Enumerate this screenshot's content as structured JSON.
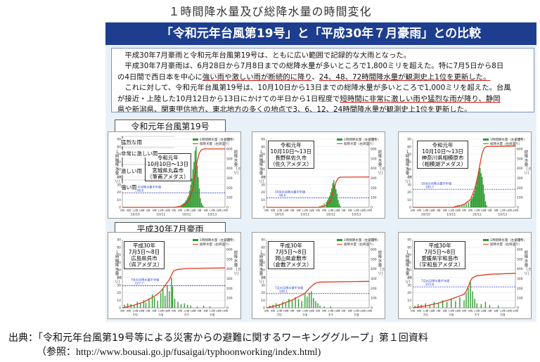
{
  "page_title": "１時間降水量及び総降水量の時間変化",
  "banner": "「令和元年台風第19号」と「平成30年７月豪雨」との比較",
  "paragraphs": {
    "p1": "平成30年7月豪雨と令和元年台風第19号は、ともに広い範囲で記録的な大雨となった。",
    "p2a": "平成30年7月豪雨は、6月28日から7月8日までの総降水量が多いところで1,800ミリを超えた。特に7月5日から8日",
    "p2b": "の4日間で西日本を中心に",
    "p2b_ul1": "強い雨や激しい雨が断続的に降り",
    "p2b_mid": "、",
    "p2b_ul2": "24、48、72時間降水量が観測史上1位を更新した。",
    "p3a": "これに対して、令和元年台風第19号は、10月10日から13日までの総降水量が多いところで1,000ミリを超えた。台風",
    "p3b": "が接近・上陸した10月12日から13日にかけての半日から1日程度で",
    "p3b_ul": "短時間に非常に激しい雨や猛烈な雨が降り、静岡",
    "p3c_ul": "県や新潟県、関東甲信地方、東北地方の多くの地点で3、6、12、24時間降水量が観測史上1位を更新した。"
  },
  "group_labels": {
    "reiwa": "令和元年台風第19号",
    "heisei": "平成30年7月豪雨"
  },
  "intensity_labels": [
    "猛烈な雨",
    "非常に激しい雨",
    "激しい雨",
    "強い雨"
  ],
  "axis_labels": {
    "left": "１時間降水量（ミリ）",
    "right": "総降水量（ミリ）",
    "legend_bar": "1時間降水量（左目盛り）",
    "legend_line": "総降水量（右目盛り）"
  },
  "colors": {
    "bar": "#2e9a2e",
    "line": "#e03a1e",
    "ref": "#2a3fcf",
    "banner": "#1d3d8f",
    "panel": "#e9f1f8"
  },
  "source": {
    "line1": "出典：「令和元年台風第19号等による災害からの避難に関するワーキンググループ」第１回資料",
    "line2": "（参照：http://www.bousai.go.jp/fusaigai/typhoonworking/index.html)"
  },
  "chart_data": [
    {
      "type": "bar",
      "title": [
        "令和元年",
        "10月10日～13日",
        "宮城県丸森市",
        "（筆甫アメダス）"
      ],
      "date_labels": [
        "10/10",
        "10/11",
        "10/12",
        "10/13"
      ],
      "x_ticks": [
        "0時",
        "6時",
        "12時",
        "18時",
        "0時",
        "6時",
        "12時",
        "18時",
        "0時",
        "6時",
        "12時",
        "18時",
        "0時",
        "6時",
        "12時",
        "18時",
        "24時"
      ],
      "hours": 96,
      "ylim_left": [
        0,
        90
      ],
      "ylim_right": [
        0,
        700
      ],
      "yticks_left": [
        0,
        10,
        20,
        30,
        40,
        50,
        60,
        70,
        80,
        90
      ],
      "yticks_right": [
        0,
        100,
        200,
        300,
        400,
        500,
        600,
        700
      ],
      "ref_label": "10月の月降水量平年値",
      "ref_value": "148.8",
      "ref_right": 148.8,
      "bars": [
        [
          49,
          1
        ],
        [
          51,
          1
        ],
        [
          53,
          2
        ],
        [
          55,
          3
        ],
        [
          56,
          4
        ],
        [
          57,
          5
        ],
        [
          58,
          6
        ],
        [
          59,
          8
        ],
        [
          60,
          10
        ],
        [
          61,
          13
        ],
        [
          62,
          16
        ],
        [
          63,
          22
        ],
        [
          64,
          30
        ],
        [
          65,
          38
        ],
        [
          66,
          50
        ],
        [
          67,
          60
        ],
        [
          68,
          75
        ],
        [
          69,
          80
        ],
        [
          70,
          55
        ],
        [
          71,
          40
        ],
        [
          72,
          25
        ],
        [
          73,
          12
        ],
        [
          74,
          6
        ],
        [
          75,
          3
        ],
        [
          76,
          1
        ]
      ],
      "total": [
        [
          0,
          0
        ],
        [
          49,
          0
        ],
        [
          55,
          12
        ],
        [
          60,
          40
        ],
        [
          63,
          90
        ],
        [
          66,
          200
        ],
        [
          68,
          330
        ],
        [
          70,
          480
        ],
        [
          72,
          560
        ],
        [
          74,
          590
        ],
        [
          76,
          600
        ],
        [
          96,
          600
        ]
      ]
    },
    {
      "type": "bar",
      "title": [
        "令和元年",
        "10月10日～13日",
        "長野県佐久市",
        "（佐久アメダス）"
      ],
      "date_labels": [
        "10/10",
        "10/11",
        "10/12",
        "10/13"
      ],
      "x_ticks": [
        "0時",
        "6時",
        "12時",
        "18時",
        "0時",
        "6時",
        "12時",
        "18時",
        "0時",
        "6時",
        "12時",
        "18時",
        "0時",
        "6時",
        "12時",
        "18時",
        "24時"
      ],
      "hours": 96,
      "ylim_left": [
        0,
        90
      ],
      "ylim_right": [
        0,
        700
      ],
      "yticks_left": [
        0,
        10,
        20,
        30,
        40,
        50,
        60,
        70,
        80,
        90
      ],
      "yticks_right": [
        0,
        100,
        200,
        300,
        400,
        500,
        600,
        700
      ],
      "ref_label": "10月の月降水量平年値",
      "ref_value": "98.0",
      "ref_right": 98.0,
      "bars": [
        [
          50,
          2
        ],
        [
          52,
          3
        ],
        [
          54,
          5
        ],
        [
          56,
          7
        ],
        [
          57,
          9
        ],
        [
          58,
          12
        ],
        [
          59,
          15
        ],
        [
          60,
          20
        ],
        [
          61,
          25
        ],
        [
          62,
          32
        ],
        [
          63,
          36
        ],
        [
          64,
          30
        ],
        [
          65,
          24
        ],
        [
          66,
          18
        ],
        [
          67,
          10
        ],
        [
          68,
          5
        ],
        [
          69,
          2
        ]
      ],
      "total": [
        [
          0,
          0
        ],
        [
          50,
          0
        ],
        [
          56,
          20
        ],
        [
          60,
          70
        ],
        [
          63,
          180
        ],
        [
          65,
          260
        ],
        [
          67,
          300
        ],
        [
          69,
          310
        ],
        [
          96,
          312
        ]
      ]
    },
    {
      "type": "bar",
      "title": [
        "令和元年",
        "10月10日～13日",
        "神奈川県相模原市",
        "（相模湖アメダス）"
      ],
      "date_labels": [
        "10/10",
        "10/11",
        "10/12",
        "10/13"
      ],
      "x_ticks": [
        "0時",
        "6時",
        "12時",
        "18時",
        "0時",
        "6時",
        "12時",
        "18時",
        "0時",
        "6時",
        "12時",
        "18時",
        "0時",
        "6時",
        "12時",
        "18時",
        "24時"
      ],
      "hours": 96,
      "ylim_left": [
        0,
        90
      ],
      "ylim_right": [
        0,
        700
      ],
      "yticks_left": [
        0,
        10,
        20,
        30,
        40,
        50,
        60,
        70,
        80,
        90
      ],
      "yticks_right": [
        0,
        100,
        200,
        300,
        400,
        500,
        600,
        700
      ],
      "ref_label": "10月の月降水量平年値",
      "ref_value": "185.7",
      "ref_right": 185.7,
      "bars": [
        [
          38,
          1
        ],
        [
          40,
          2
        ],
        [
          42,
          3
        ],
        [
          44,
          2
        ],
        [
          46,
          3
        ],
        [
          48,
          4
        ],
        [
          50,
          5
        ],
        [
          52,
          7
        ],
        [
          54,
          9
        ],
        [
          55,
          11
        ],
        [
          56,
          14
        ],
        [
          57,
          18
        ],
        [
          58,
          22
        ],
        [
          59,
          28
        ],
        [
          60,
          35
        ],
        [
          61,
          42
        ],
        [
          62,
          48
        ],
        [
          63,
          52
        ],
        [
          64,
          45
        ],
        [
          65,
          40
        ],
        [
          66,
          30
        ],
        [
          67,
          18
        ],
        [
          68,
          8
        ],
        [
          69,
          3
        ]
      ],
      "total": [
        [
          0,
          0
        ],
        [
          38,
          0
        ],
        [
          48,
          30
        ],
        [
          54,
          80
        ],
        [
          58,
          190
        ],
        [
          61,
          330
        ],
        [
          63,
          450
        ],
        [
          65,
          560
        ],
        [
          67,
          610
        ],
        [
          69,
          625
        ],
        [
          96,
          630
        ]
      ]
    },
    {
      "type": "bar",
      "title": [
        "平成30年",
        "7月5日～8日",
        "広島県呉市",
        "（呉アメダス）"
      ],
      "date_labels": [
        "7/5",
        "7/6",
        "7/7",
        "7/8"
      ],
      "x_ticks": [
        "0時",
        "6時",
        "12時",
        "18時",
        "0時",
        "6時",
        "12時",
        "18時",
        "0時",
        "6時",
        "12時",
        "18時",
        "0時",
        "6時",
        "12時",
        "18時",
        "24時"
      ],
      "hours": 96,
      "ylim_left": [
        0,
        90
      ],
      "ylim_right": [
        0,
        700
      ],
      "yticks_left": [
        0,
        10,
        20,
        30,
        40,
        50,
        60,
        70,
        80,
        90
      ],
      "yticks_right": [
        0,
        100,
        200,
        300,
        400,
        500,
        600,
        700
      ],
      "ref_label": "7月の月降水量平年値",
      "ref_value": "227.7",
      "ref_right": 227.7,
      "bars": [
        [
          2,
          4
        ],
        [
          5,
          6
        ],
        [
          8,
          5
        ],
        [
          11,
          3
        ],
        [
          14,
          8
        ],
        [
          17,
          6
        ],
        [
          20,
          10
        ],
        [
          22,
          7
        ],
        [
          25,
          12
        ],
        [
          28,
          18
        ],
        [
          30,
          14
        ],
        [
          33,
          9
        ],
        [
          36,
          20
        ],
        [
          38,
          26
        ],
        [
          40,
          16
        ],
        [
          42,
          30
        ],
        [
          44,
          22
        ],
        [
          46,
          40
        ],
        [
          47,
          28
        ],
        [
          49,
          12
        ],
        [
          52,
          8
        ],
        [
          55,
          5
        ],
        [
          58,
          6
        ],
        [
          61,
          4
        ],
        [
          64,
          3
        ],
        [
          70,
          2
        ],
        [
          76,
          3
        ],
        [
          82,
          2
        ]
      ],
      "total": [
        [
          0,
          0
        ],
        [
          10,
          25
        ],
        [
          20,
          60
        ],
        [
          30,
          120
        ],
        [
          36,
          170
        ],
        [
          40,
          230
        ],
        [
          44,
          290
        ],
        [
          46,
          340
        ],
        [
          48,
          380
        ],
        [
          52,
          395
        ],
        [
          60,
          405
        ],
        [
          96,
          410
        ]
      ]
    },
    {
      "type": "bar",
      "title": [
        "平成30年",
        "7月5日～8日",
        "岡山県倉敷市",
        "（倉敷アメダス）"
      ],
      "date_labels": [
        "7/5",
        "7/6",
        "7/7",
        "7/8"
      ],
      "x_ticks": [
        "0時",
        "6時",
        "12時",
        "18時",
        "0時",
        "6時",
        "12時",
        "18時",
        "0時",
        "6時",
        "12時",
        "18時",
        "0時",
        "6時",
        "12時",
        "18時",
        "24時"
      ],
      "hours": 96,
      "ylim_left": [
        0,
        90
      ],
      "ylim_right": [
        0,
        700
      ],
      "yticks_left": [
        0,
        10,
        20,
        30,
        40,
        50,
        60,
        70,
        80,
        90
      ],
      "yticks_right": [
        0,
        100,
        200,
        300,
        400,
        500,
        600,
        700
      ],
      "ref_label": "7月の月降水量平年値",
      "ref_value": "146.1",
      "ref_right": 146.1,
      "bars": [
        [
          3,
          3
        ],
        [
          6,
          4
        ],
        [
          9,
          6
        ],
        [
          12,
          5
        ],
        [
          15,
          8
        ],
        [
          18,
          7
        ],
        [
          21,
          12
        ],
        [
          24,
          10
        ],
        [
          27,
          14
        ],
        [
          30,
          12
        ],
        [
          33,
          9
        ],
        [
          36,
          18
        ],
        [
          38,
          15
        ],
        [
          40,
          20
        ],
        [
          42,
          22
        ],
        [
          44,
          13
        ],
        [
          46,
          9
        ],
        [
          48,
          6
        ],
        [
          50,
          3
        ],
        [
          54,
          2
        ],
        [
          60,
          2
        ]
      ],
      "total": [
        [
          0,
          0
        ],
        [
          12,
          30
        ],
        [
          24,
          80
        ],
        [
          36,
          150
        ],
        [
          40,
          200
        ],
        [
          44,
          240
        ],
        [
          46,
          255
        ],
        [
          50,
          265
        ],
        [
          96,
          272
        ]
      ]
    },
    {
      "type": "bar",
      "title": [
        "平成30年",
        "7月5日～8日",
        "愛媛県宇和島市",
        "（宇和島アメダス）"
      ],
      "date_labels": [
        "7/5",
        "7/6",
        "7/7",
        "7/8"
      ],
      "x_ticks": [
        "0時",
        "6時",
        "12時",
        "18時",
        "0時",
        "6時",
        "12時",
        "18時",
        "0時",
        "6時",
        "12時",
        "18時",
        "0時",
        "6時",
        "12時",
        "18時",
        "24時"
      ],
      "hours": 96,
      "ylim_left": [
        0,
        90
      ],
      "ylim_right": [
        0,
        700
      ],
      "yticks_left": [
        0,
        10,
        20,
        30,
        40,
        50,
        60,
        70,
        80,
        90
      ],
      "yticks_right": [
        0,
        100,
        200,
        300,
        400,
        500,
        600,
        700
      ],
      "ref_label": "7月の月降水量平年値",
      "ref_value": "215.8",
      "ref_right": 215.8,
      "bars": [
        [
          2,
          3
        ],
        [
          5,
          5
        ],
        [
          8,
          4
        ],
        [
          12,
          6
        ],
        [
          16,
          4
        ],
        [
          20,
          8
        ],
        [
          24,
          6
        ],
        [
          28,
          10
        ],
        [
          32,
          8
        ],
        [
          36,
          12
        ],
        [
          40,
          9
        ],
        [
          44,
          14
        ],
        [
          48,
          10
        ],
        [
          50,
          20
        ],
        [
          52,
          26
        ],
        [
          54,
          34
        ],
        [
          56,
          22
        ],
        [
          58,
          12
        ],
        [
          60,
          6
        ],
        [
          64,
          5
        ],
        [
          68,
          8
        ],
        [
          72,
          4
        ],
        [
          80,
          3
        ]
      ],
      "total": [
        [
          0,
          0
        ],
        [
          12,
          20
        ],
        [
          24,
          50
        ],
        [
          36,
          90
        ],
        [
          48,
          140
        ],
        [
          50,
          170
        ],
        [
          52,
          220
        ],
        [
          54,
          280
        ],
        [
          56,
          310
        ],
        [
          60,
          330
        ],
        [
          72,
          345
        ],
        [
          96,
          355
        ]
      ]
    }
  ]
}
